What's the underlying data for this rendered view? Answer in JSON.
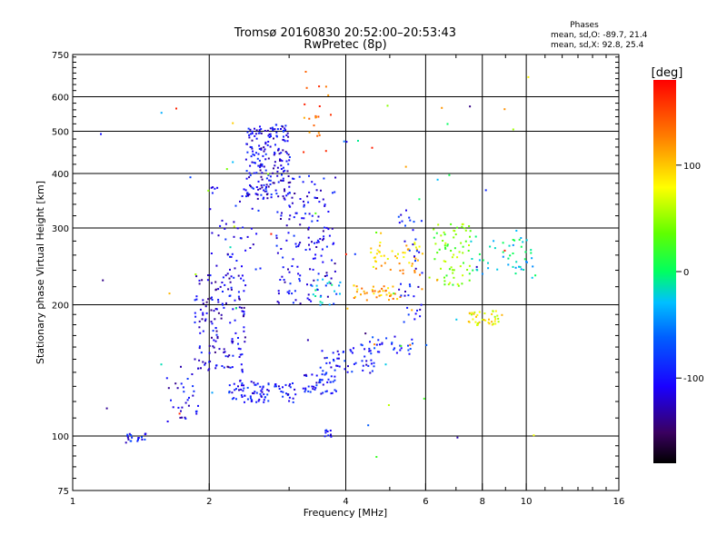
{
  "chart_data": {
    "type": "scatter",
    "title": "Tromsø 20160830 20:52:00–20:53:43",
    "subtitle": "RwPretec (8p)",
    "xlabel": "Frequency [MHz]",
    "ylabel": "Stationary phase Virtual Height [km]",
    "x_scale": "log",
    "y_scale": "log",
    "xlim": [
      1,
      16
    ],
    "ylim": [
      75,
      750
    ],
    "x_ticks": [
      1,
      2,
      4,
      6,
      8,
      10,
      16
    ],
    "x_tick_labels": [
      "1",
      "2",
      "4",
      "6",
      "8",
      "10",
      "16"
    ],
    "x_grid": [
      2,
      4,
      6,
      8,
      10
    ],
    "y_ticks": [
      75,
      100,
      200,
      300,
      400,
      500,
      600,
      750
    ],
    "y_tick_labels": [
      "75",
      "100",
      "200",
      "300",
      "400",
      "500",
      "600",
      "750"
    ],
    "y_grid": [
      100,
      200,
      300,
      400,
      500,
      600
    ],
    "grid": true,
    "stats": {
      "title": "Phases",
      "o_line": "mean, sd,O: -89.7, 21.4",
      "x_line": "mean, sd,X: 92.8, 25.4"
    },
    "colorbar": {
      "label": "[deg]",
      "range": [
        -180,
        180
      ],
      "ticks": [
        100,
        0,
        -100
      ],
      "tick_labels": [
        "100",
        "0",
        "-100"
      ]
    },
    "clusters": [
      {
        "x": [
          1.3,
          1.45
        ],
        "y": [
          97,
          102
        ],
        "phase": -100,
        "n": 20
      },
      {
        "x": [
          1.6,
          1.9
        ],
        "y": [
          108,
          140
        ],
        "phase": -110,
        "n": 30
      },
      {
        "x": [
          1.85,
          2.4
        ],
        "y": [
          140,
          240
        ],
        "phase": -115,
        "n": 160
      },
      {
        "x": [
          2.2,
          3.1
        ],
        "y": [
          120,
          135
        ],
        "phase": -100,
        "n": 90
      },
      {
        "x": [
          2.0,
          2.6
        ],
        "y": [
          240,
          380
        ],
        "phase": -110,
        "n": 50
      },
      {
        "x": [
          2.4,
          3.0
        ],
        "y": [
          350,
          520
        ],
        "phase": -110,
        "n": 200
      },
      {
        "x": [
          2.8,
          3.8
        ],
        "y": [
          200,
          400
        ],
        "phase": -110,
        "n": 150
      },
      {
        "x": [
          3.2,
          3.8
        ],
        "y": [
          125,
          140
        ],
        "phase": -100,
        "n": 45
      },
      {
        "x": [
          3.5,
          4.6
        ],
        "y": [
          140,
          160
        ],
        "phase": -100,
        "n": 50
      },
      {
        "x": [
          4.2,
          5.6
        ],
        "y": [
          155,
          170
        ],
        "phase": -90,
        "n": 30
      },
      {
        "x": [
          3.3,
          3.9
        ],
        "y": [
          200,
          230
        ],
        "phase": -20,
        "n": 20
      },
      {
        "x": [
          4.1,
          5.3
        ],
        "y": [
          205,
          225
        ],
        "phase": 110,
        "n": 40
      },
      {
        "x": [
          4.5,
          5.9
        ],
        "y": [
          235,
          280
        ],
        "phase": 100,
        "n": 50
      },
      {
        "x": [
          5.2,
          5.9
        ],
        "y": [
          180,
          340
        ],
        "phase": -100,
        "n": 40
      },
      {
        "x": [
          6.2,
          7.5
        ],
        "y": [
          220,
          310
        ],
        "phase": 40,
        "n": 70
      },
      {
        "x": [
          7.4,
          8.8
        ],
        "y": [
          180,
          195
        ],
        "phase": 80,
        "n": 40
      },
      {
        "x": [
          7.5,
          10.5
        ],
        "y": [
          230,
          290
        ],
        "phase": -20,
        "n": 50
      },
      {
        "x": [
          3.2,
          3.7
        ],
        "y": [
          450,
          650
        ],
        "phase": 140,
        "n": 20
      },
      {
        "x": [
          3.55,
          3.7
        ],
        "y": [
          100,
          104
        ],
        "phase": -100,
        "n": 10
      },
      {
        "x": [
          1.1,
          10.5
        ],
        "y": [
          90,
          700
        ],
        "phase": 0,
        "n": 70
      }
    ]
  }
}
